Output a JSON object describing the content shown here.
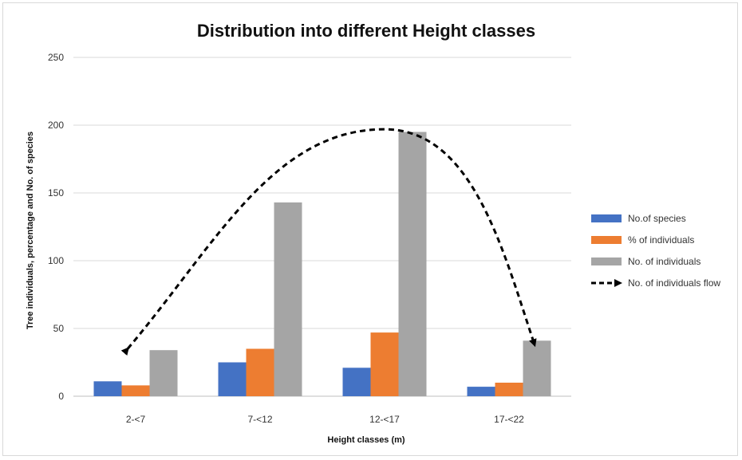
{
  "chart_data": {
    "type": "bar",
    "title": "Distribution into different Height classes",
    "xlabel": "Height classes (m)",
    "ylabel": "Tree individuals, percentage and No. of species",
    "categories": [
      "2-<7",
      "7-<12",
      "12-<17",
      "17-<22"
    ],
    "ylim": [
      0,
      250
    ],
    "yticks": [
      0,
      50,
      100,
      150,
      200,
      250
    ],
    "grid": true,
    "legend_position": "right",
    "series": [
      {
        "name": "No.of species",
        "values": [
          11,
          25,
          21,
          7
        ],
        "color": "#4472c4"
      },
      {
        "name": "% of individuals",
        "values": [
          8,
          35,
          47,
          10
        ],
        "color": "#ed7d31"
      },
      {
        "name": "No. of individuals",
        "values": [
          34,
          143,
          195,
          41
        ],
        "color": "#a5a5a5"
      }
    ],
    "annotation": {
      "name": "No. of individuals flow",
      "style": "dashed-arrow",
      "color": "#000000",
      "points": [
        {
          "category": "2-<7",
          "y": 35
        },
        {
          "category": "12-<17",
          "y": 197
        },
        {
          "category": "17-<22",
          "y": 38
        }
      ]
    }
  }
}
